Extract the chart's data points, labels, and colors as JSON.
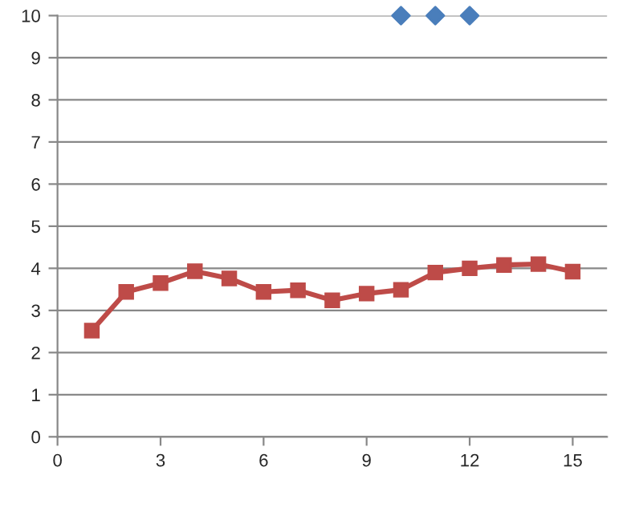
{
  "chart_data": {
    "type": "line",
    "xlim": [
      0,
      16
    ],
    "xticks": [
      0,
      3,
      6,
      9,
      12,
      15
    ],
    "ylim": [
      0,
      10
    ],
    "yticks": [
      0,
      1,
      2,
      3,
      4,
      5,
      6,
      7,
      8,
      9,
      10
    ],
    "grid": "y",
    "legend": false,
    "series": [
      {
        "type": "scatter",
        "marker": "diamond",
        "color": "#4a7ebb",
        "x": [
          10,
          11,
          12
        ],
        "values": [
          10,
          10,
          10
        ]
      },
      {
        "marker": "square",
        "color": "#be4b48",
        "x": [
          1,
          2,
          3,
          4,
          5,
          6,
          7,
          8,
          9,
          10,
          11,
          12,
          13,
          14,
          15
        ],
        "values": [
          2.52,
          3.44,
          3.65,
          3.93,
          3.76,
          3.44,
          3.48,
          3.24,
          3.4,
          3.49,
          3.9,
          4.0,
          4.08,
          4.1,
          3.92
        ]
      }
    ]
  }
}
